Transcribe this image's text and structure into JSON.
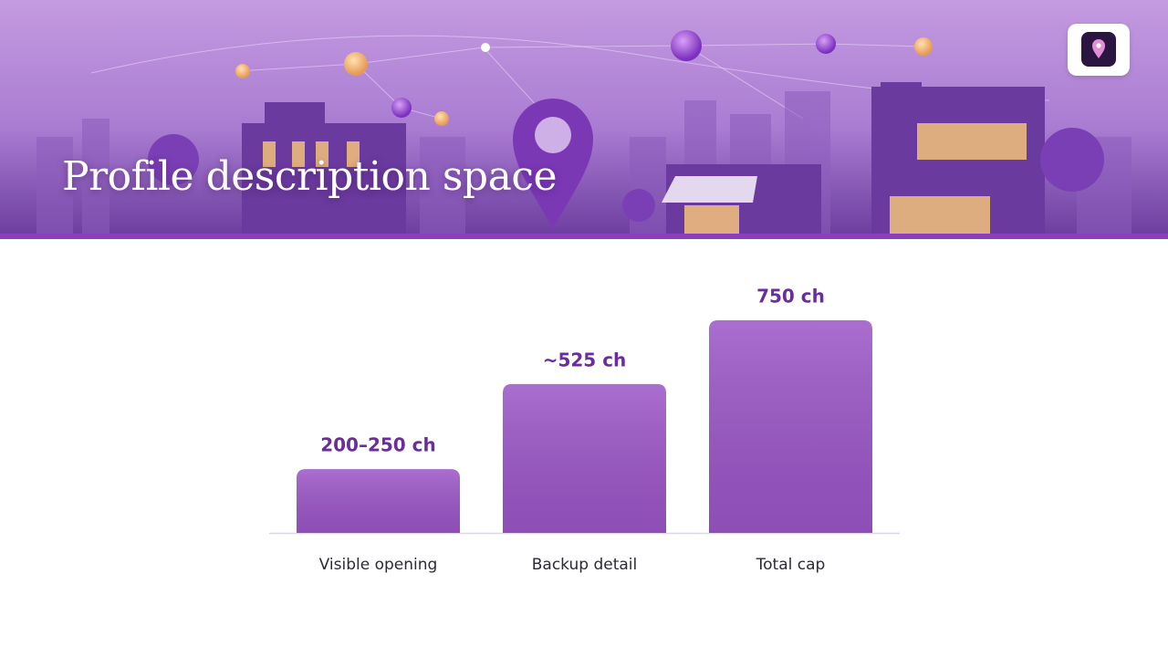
{
  "header": {
    "title": "Profile description space"
  },
  "chart_data": {
    "type": "bar",
    "categories": [
      "Visible opening",
      "Backup detail",
      "Total cap"
    ],
    "values": [
      225,
      525,
      750
    ],
    "value_labels": [
      "200–250 ch",
      "~525 ch",
      "750 ch"
    ],
    "color": "#9a55c6"
  }
}
